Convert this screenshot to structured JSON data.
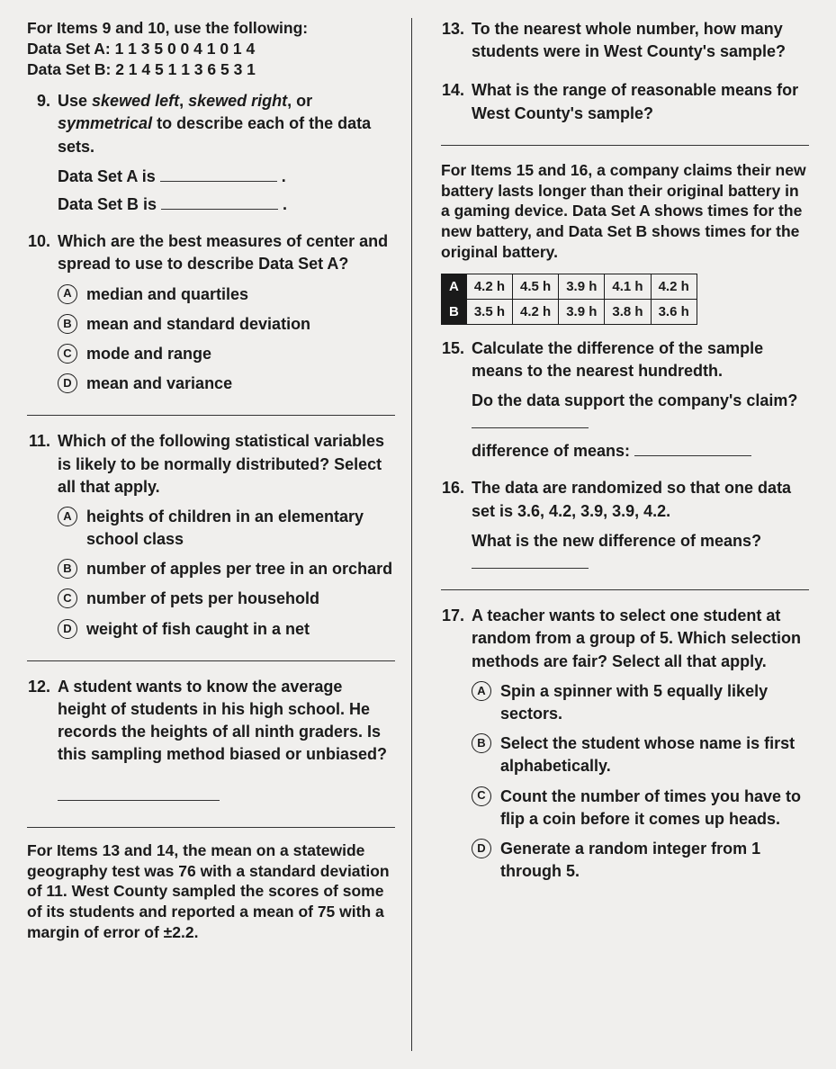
{
  "left": {
    "intro910": "For Items 9 and 10, use the following:\nData Set A: 1  1  3  5  0  0  4  1  0  1  4\nData Set B: 2  1  4  5  1  1  3  6  5  3  1",
    "q9": {
      "num": "9.",
      "text_a": "Use ",
      "it1": "skewed left",
      "text_b": ", ",
      "it2": "skewed right",
      "text_c": ", or ",
      "it3": "symmetrical",
      "text_d": " to describe each of the data sets.",
      "subA": "Data Set A is ",
      "subB": "Data Set B is "
    },
    "q10": {
      "num": "10.",
      "text": "Which are the best measures of center and spread to use to describe Data Set A?",
      "opts": [
        {
          "l": "A",
          "t": "median and quartiles"
        },
        {
          "l": "B",
          "t": "mean and standard deviation"
        },
        {
          "l": "C",
          "t": "mode and range"
        },
        {
          "l": "D",
          "t": "mean and variance"
        }
      ]
    },
    "q11": {
      "num": "11.",
      "text": "Which of the following statistical variables is likely to be normally distributed? Select all that apply.",
      "opts": [
        {
          "l": "A",
          "t": "heights of children in an elementary school class"
        },
        {
          "l": "B",
          "t": "number of apples per tree in an orchard"
        },
        {
          "l": "C",
          "t": "number of pets per household"
        },
        {
          "l": "D",
          "t": "weight of fish caught in a net"
        }
      ]
    },
    "q12": {
      "num": "12.",
      "text": "A student wants to know the average height of students in his high school. He records the heights of all ninth graders. Is this sampling method biased or unbiased?"
    },
    "intro1314": "For Items 13 and 14, the mean on a statewide geography test was 76 with a standard deviation of 11. West County sampled the scores of some of its students and reported a mean of 75 with a margin of error of ±2.2."
  },
  "right": {
    "q13": {
      "num": "13.",
      "text": "To the nearest whole number, how many students were in West County's sample?"
    },
    "q14": {
      "num": "14.",
      "text": "What is the range of reasonable means for West County's sample?"
    },
    "intro1516": "For Items 15 and 16, a company claims their new battery lasts longer than their original battery in a gaming device. Data Set A shows times for the new battery, and Data Set B shows times for the original battery.",
    "table": {
      "rows": [
        {
          "h": "A",
          "c": [
            "4.2 h",
            "4.5 h",
            "3.9 h",
            "4.1 h",
            "4.2 h"
          ]
        },
        {
          "h": "B",
          "c": [
            "3.5 h",
            "4.2 h",
            "3.9 h",
            "3.8 h",
            "3.6 h"
          ]
        }
      ]
    },
    "q15": {
      "num": "15.",
      "text": "Calculate the difference of the sample means to the nearest hundredth.",
      "sub1": "Do the data support the company's claim? ",
      "sub2": "difference of means: "
    },
    "q16": {
      "num": "16.",
      "text": "The data are randomized so that one data set is 3.6, 4.2, 3.9, 3.9, 4.2.",
      "sub": "What is the new difference of means? "
    },
    "q17": {
      "num": "17.",
      "text": "A teacher wants to select one student at random from a group of 5. Which selection methods are fair? Select all that apply.",
      "opts": [
        {
          "l": "A",
          "t": "Spin a spinner with 5 equally likely sectors."
        },
        {
          "l": "B",
          "t": "Select the student whose name is first alphabetically."
        },
        {
          "l": "C",
          "t": "Count the number of times you have to flip a coin before it comes up heads."
        },
        {
          "l": "D",
          "t": "Generate a random integer from 1 through 5."
        }
      ]
    }
  }
}
